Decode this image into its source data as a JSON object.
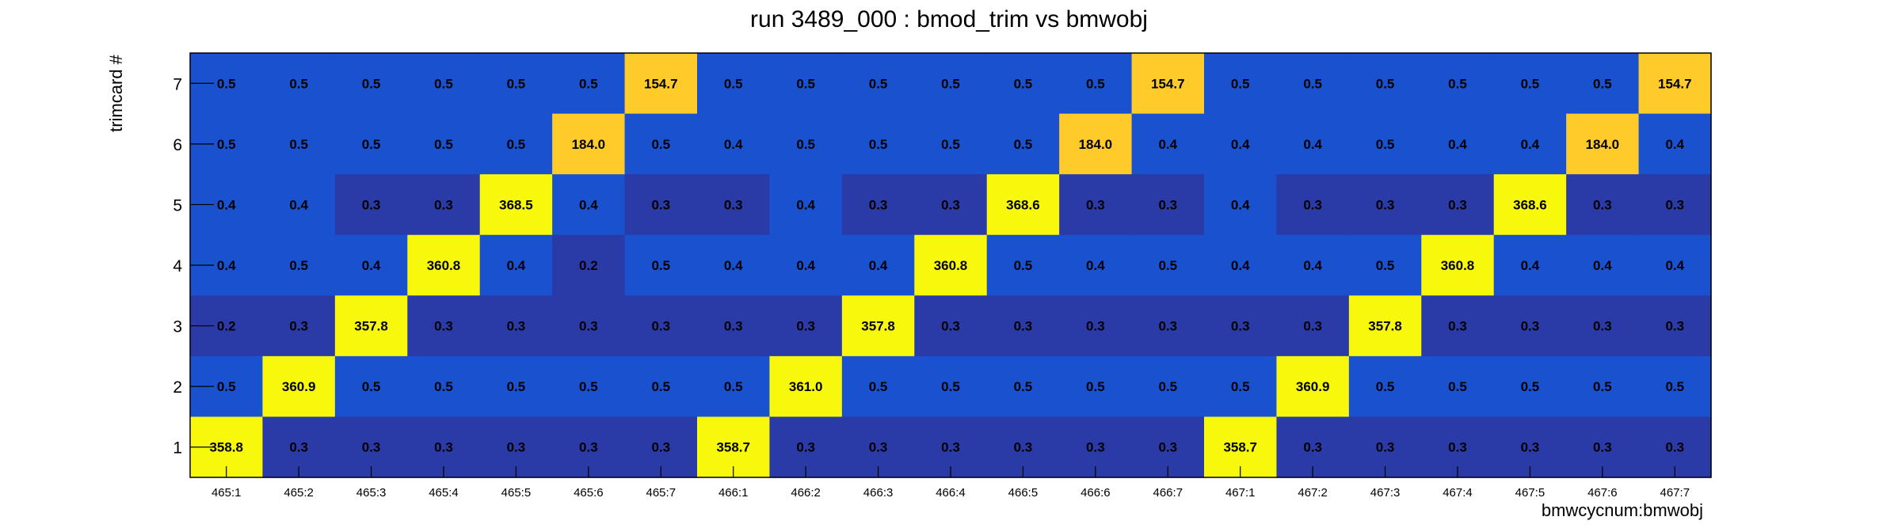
{
  "chart_data": {
    "type": "heatmap",
    "title": "run 3489_000 : bmod_trim vs bmwobj",
    "xlabel": "bmwcycnum:bmwobj",
    "ylabel": "trimcard #",
    "x_categories": [
      "465:1",
      "465:2",
      "465:3",
      "465:4",
      "465:5",
      "465:6",
      "465:7",
      "466:1",
      "466:2",
      "466:3",
      "466:4",
      "466:5",
      "466:6",
      "466:7",
      "467:1",
      "467:2",
      "467:3",
      "467:4",
      "467:5",
      "467:6",
      "467:7"
    ],
    "y_categories": [
      "1",
      "2",
      "3",
      "4",
      "5",
      "6",
      "7"
    ],
    "rows": [
      {
        "y": "7",
        "values": [
          0.5,
          0.5,
          0.5,
          0.5,
          0.5,
          0.5,
          154.7,
          0.5,
          0.5,
          0.5,
          0.5,
          0.5,
          0.5,
          154.7,
          0.5,
          0.5,
          0.5,
          0.5,
          0.5,
          0.5,
          154.7
        ]
      },
      {
        "y": "6",
        "values": [
          0.5,
          0.5,
          0.5,
          0.5,
          0.5,
          184.0,
          0.5,
          0.4,
          0.5,
          0.5,
          0.5,
          0.5,
          184.0,
          0.4,
          0.4,
          0.4,
          0.5,
          0.4,
          0.4,
          184.0,
          0.4
        ]
      },
      {
        "y": "5",
        "values": [
          0.4,
          0.4,
          0.3,
          0.3,
          368.5,
          0.4,
          0.3,
          0.3,
          0.4,
          0.3,
          0.3,
          368.6,
          0.3,
          0.3,
          0.4,
          0.3,
          0.3,
          0.3,
          368.6,
          0.3,
          0.3
        ]
      },
      {
        "y": "4",
        "values": [
          0.4,
          0.5,
          0.4,
          360.8,
          0.4,
          0.2,
          0.5,
          0.4,
          0.4,
          0.4,
          360.8,
          0.5,
          0.4,
          0.5,
          0.4,
          0.4,
          0.5,
          360.8,
          0.4,
          0.4,
          0.4
        ]
      },
      {
        "y": "3",
        "values": [
          0.2,
          0.3,
          357.8,
          0.3,
          0.3,
          0.3,
          0.3,
          0.3,
          0.3,
          357.8,
          0.3,
          0.3,
          0.3,
          0.3,
          0.3,
          0.3,
          357.8,
          0.3,
          0.3,
          0.3,
          0.3
        ]
      },
      {
        "y": "2",
        "values": [
          0.5,
          360.9,
          0.5,
          0.5,
          0.5,
          0.5,
          0.5,
          0.5,
          361.0,
          0.5,
          0.5,
          0.5,
          0.5,
          0.5,
          0.5,
          360.9,
          0.5,
          0.5,
          0.5,
          0.5,
          0.5
        ]
      },
      {
        "y": "1",
        "values": [
          358.8,
          0.3,
          0.3,
          0.3,
          0.3,
          0.3,
          0.3,
          358.7,
          0.3,
          0.3,
          0.3,
          0.3,
          0.3,
          0.3,
          358.7,
          0.3,
          0.3,
          0.3,
          0.3,
          0.3,
          0.3
        ]
      }
    ],
    "colors": {
      "dark_blue": "#2a3aa6",
      "blue": "#1a51cf",
      "orange_yellow": "#fecb2a",
      "yellow": "#f8f80c"
    },
    "grid": false,
    "legend": "none"
  }
}
